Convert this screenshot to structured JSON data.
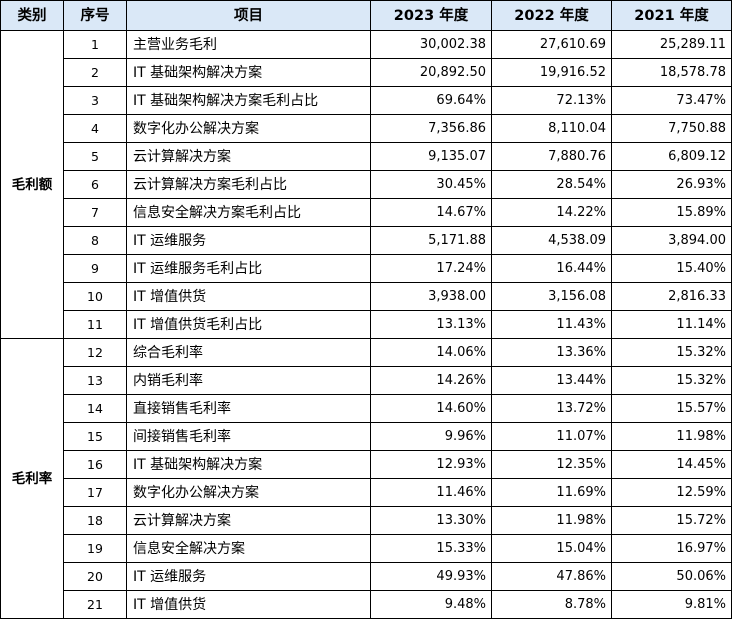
{
  "headers": {
    "category": "类别",
    "seq": "序号",
    "item": "项目",
    "y2023": "2023 年度",
    "y2022": "2022 年度",
    "y2021": "2021 年度"
  },
  "groups": [
    {
      "category": "毛利额",
      "rows": [
        {
          "seq": "1",
          "item": "主营业务毛利",
          "v2023": "30,002.38",
          "v2022": "27,610.69",
          "v2021": "25,289.11"
        },
        {
          "seq": "2",
          "item": "IT 基础架构解决方案",
          "v2023": "20,892.50",
          "v2022": "19,916.52",
          "v2021": "18,578.78"
        },
        {
          "seq": "3",
          "item": "IT 基础架构解决方案毛利占比",
          "v2023": "69.64%",
          "v2022": "72.13%",
          "v2021": "73.47%"
        },
        {
          "seq": "4",
          "item": "数字化办公解决方案",
          "v2023": "7,356.86",
          "v2022": "8,110.04",
          "v2021": "7,750.88"
        },
        {
          "seq": "5",
          "item": "云计算解决方案",
          "v2023": "9,135.07",
          "v2022": "7,880.76",
          "v2021": "6,809.12"
        },
        {
          "seq": "6",
          "item": "云计算解决方案毛利占比",
          "v2023": "30.45%",
          "v2022": "28.54%",
          "v2021": "26.93%"
        },
        {
          "seq": "7",
          "item": "信息安全解决方案毛利占比",
          "v2023": "14.67%",
          "v2022": "14.22%",
          "v2021": "15.89%"
        },
        {
          "seq": "8",
          "item": "IT 运维服务",
          "v2023": "5,171.88",
          "v2022": "4,538.09",
          "v2021": "3,894.00"
        },
        {
          "seq": "9",
          "item": "IT 运维服务毛利占比",
          "v2023": "17.24%",
          "v2022": "16.44%",
          "v2021": "15.40%"
        },
        {
          "seq": "10",
          "item": "IT 增值供货",
          "v2023": "3,938.00",
          "v2022": "3,156.08",
          "v2021": "2,816.33"
        },
        {
          "seq": "11",
          "item": "IT 增值供货毛利占比",
          "v2023": "13.13%",
          "v2022": "11.43%",
          "v2021": "11.14%"
        }
      ]
    },
    {
      "category": "毛利率",
      "rows": [
        {
          "seq": "12",
          "item": "综合毛利率",
          "v2023": "14.06%",
          "v2022": "13.36%",
          "v2021": "15.32%"
        },
        {
          "seq": "13",
          "item": "内销毛利率",
          "v2023": "14.26%",
          "v2022": "13.44%",
          "v2021": "15.32%"
        },
        {
          "seq": "14",
          "item": "直接销售毛利率",
          "v2023": "14.60%",
          "v2022": "13.72%",
          "v2021": "15.57%"
        },
        {
          "seq": "15",
          "item": "间接销售毛利率",
          "v2023": "9.96%",
          "v2022": "11.07%",
          "v2021": "11.98%"
        },
        {
          "seq": "16",
          "item": "IT 基础架构解决方案",
          "v2023": "12.93%",
          "v2022": "12.35%",
          "v2021": "14.45%"
        },
        {
          "seq": "17",
          "item": "数字化办公解决方案",
          "v2023": "11.46%",
          "v2022": "11.69%",
          "v2021": "12.59%"
        },
        {
          "seq": "18",
          "item": "云计算解决方案",
          "v2023": "13.30%",
          "v2022": "11.98%",
          "v2021": "15.72%"
        },
        {
          "seq": "19",
          "item": "信息安全解决方案",
          "v2023": "15.33%",
          "v2022": "15.04%",
          "v2021": "16.97%"
        },
        {
          "seq": "20",
          "item": "IT 运维服务",
          "v2023": "49.93%",
          "v2022": "47.86%",
          "v2021": "50.06%"
        },
        {
          "seq": "21",
          "item": "IT 增值供货",
          "v2023": "9.48%",
          "v2022": "8.78%",
          "v2021": "9.81%"
        }
      ]
    }
  ],
  "colors": {
    "header_background": "#dae8f7",
    "border": "#000000"
  }
}
